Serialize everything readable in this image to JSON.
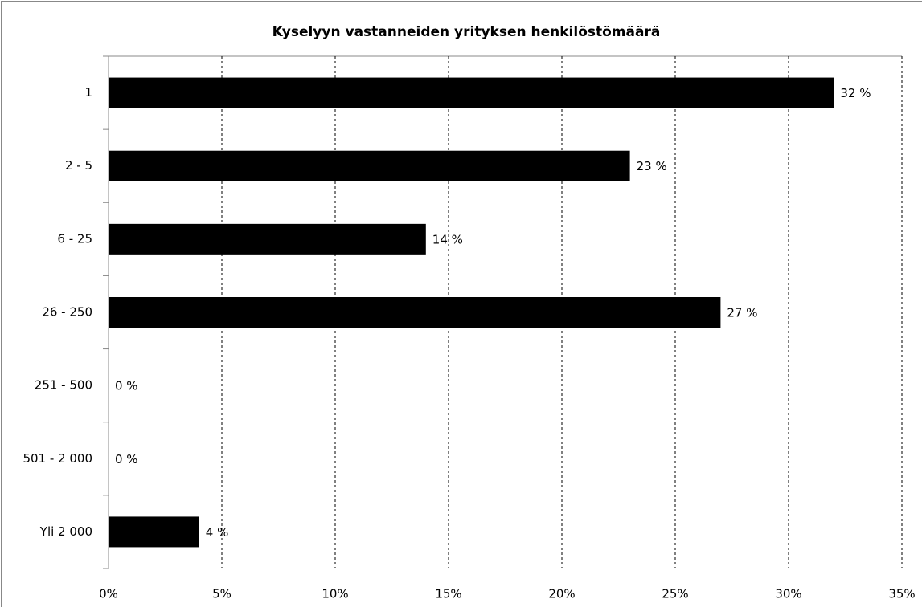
{
  "chart_data": {
    "type": "hbar",
    "title": "Kyselyyn vastanneiden yrityksen henkilöstömäärä",
    "categories": [
      "1",
      "2 - 5",
      "6 - 25",
      "26 - 250",
      "251 - 500",
      "501 - 2 000",
      "Yli 2 000"
    ],
    "values": [
      32,
      23,
      14,
      27,
      0,
      0,
      4
    ],
    "value_labels": [
      "32 %",
      "23 %",
      "14 %",
      "27 %",
      "0 %",
      "0 %",
      "4 %"
    ],
    "color": "#000000",
    "xlim": [
      0,
      35
    ],
    "xticks": [
      {
        "value": 0,
        "label": "0%"
      },
      {
        "value": 5,
        "label": "5%"
      },
      {
        "value": 10,
        "label": "10%"
      },
      {
        "value": 15,
        "label": "15%"
      },
      {
        "value": 20,
        "label": "20%"
      },
      {
        "value": 25,
        "label": "25%"
      },
      {
        "value": 30,
        "label": "30%"
      },
      {
        "value": 35,
        "label": "35%"
      }
    ],
    "grid": true
  }
}
